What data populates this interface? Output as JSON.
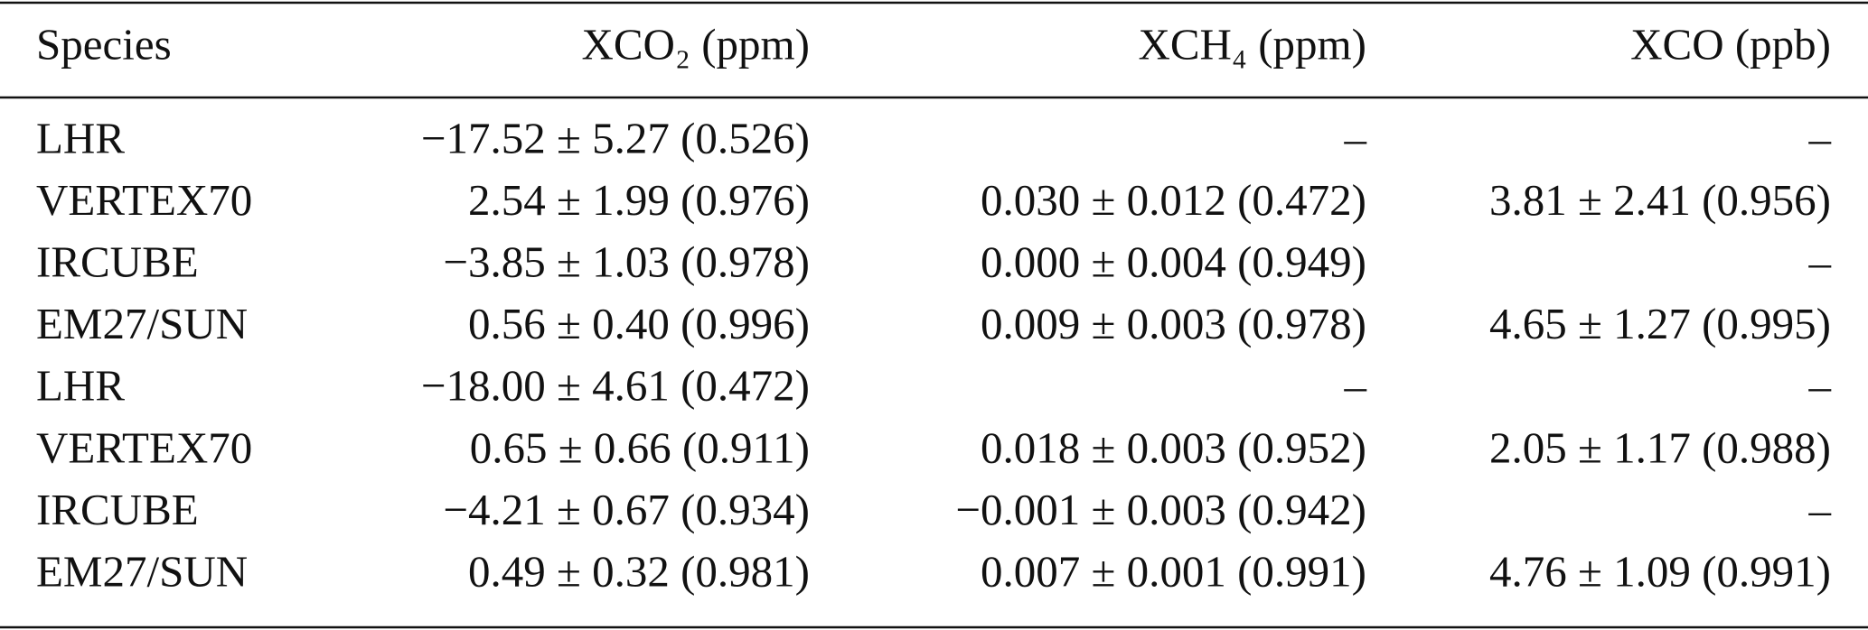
{
  "table": {
    "header": [
      "Species",
      "XCO₂ (ppm)",
      "XCH₄ (ppm)",
      "XCO (ppb)"
    ],
    "rows": [
      [
        "LHR",
        "−17.52 ± 5.27 (0.526)",
        "–",
        "–"
      ],
      [
        "VERTEX70",
        "2.54 ± 1.99 (0.976)",
        "0.030 ± 0.012 (0.472)",
        "3.81 ± 2.41 (0.956)"
      ],
      [
        "IRCUBE",
        "−3.85 ± 1.03 (0.978)",
        "0.000 ± 0.004 (0.949)",
        "–"
      ],
      [
        "EM27/SUN",
        "0.56 ± 0.40 (0.996)",
        "0.009 ± 0.003 (0.978)",
        "4.65 ± 1.27 (0.995)"
      ],
      [
        "LHR",
        "−18.00 ± 4.61 (0.472)",
        "–",
        "–"
      ],
      [
        "VERTEX70",
        "0.65 ± 0.66 (0.911)",
        "0.018 ± 0.003 (0.952)",
        "2.05 ± 1.17 (0.988)"
      ],
      [
        "IRCUBE",
        "−4.21 ± 0.67 (0.934)",
        "−0.001 ± 0.003 (0.942)",
        "–"
      ],
      [
        "EM27/SUN",
        "0.49 ± 0.32 (0.981)",
        "0.007 ± 0.001 (0.991)",
        "4.76 ± 1.09 (0.991)"
      ]
    ]
  }
}
